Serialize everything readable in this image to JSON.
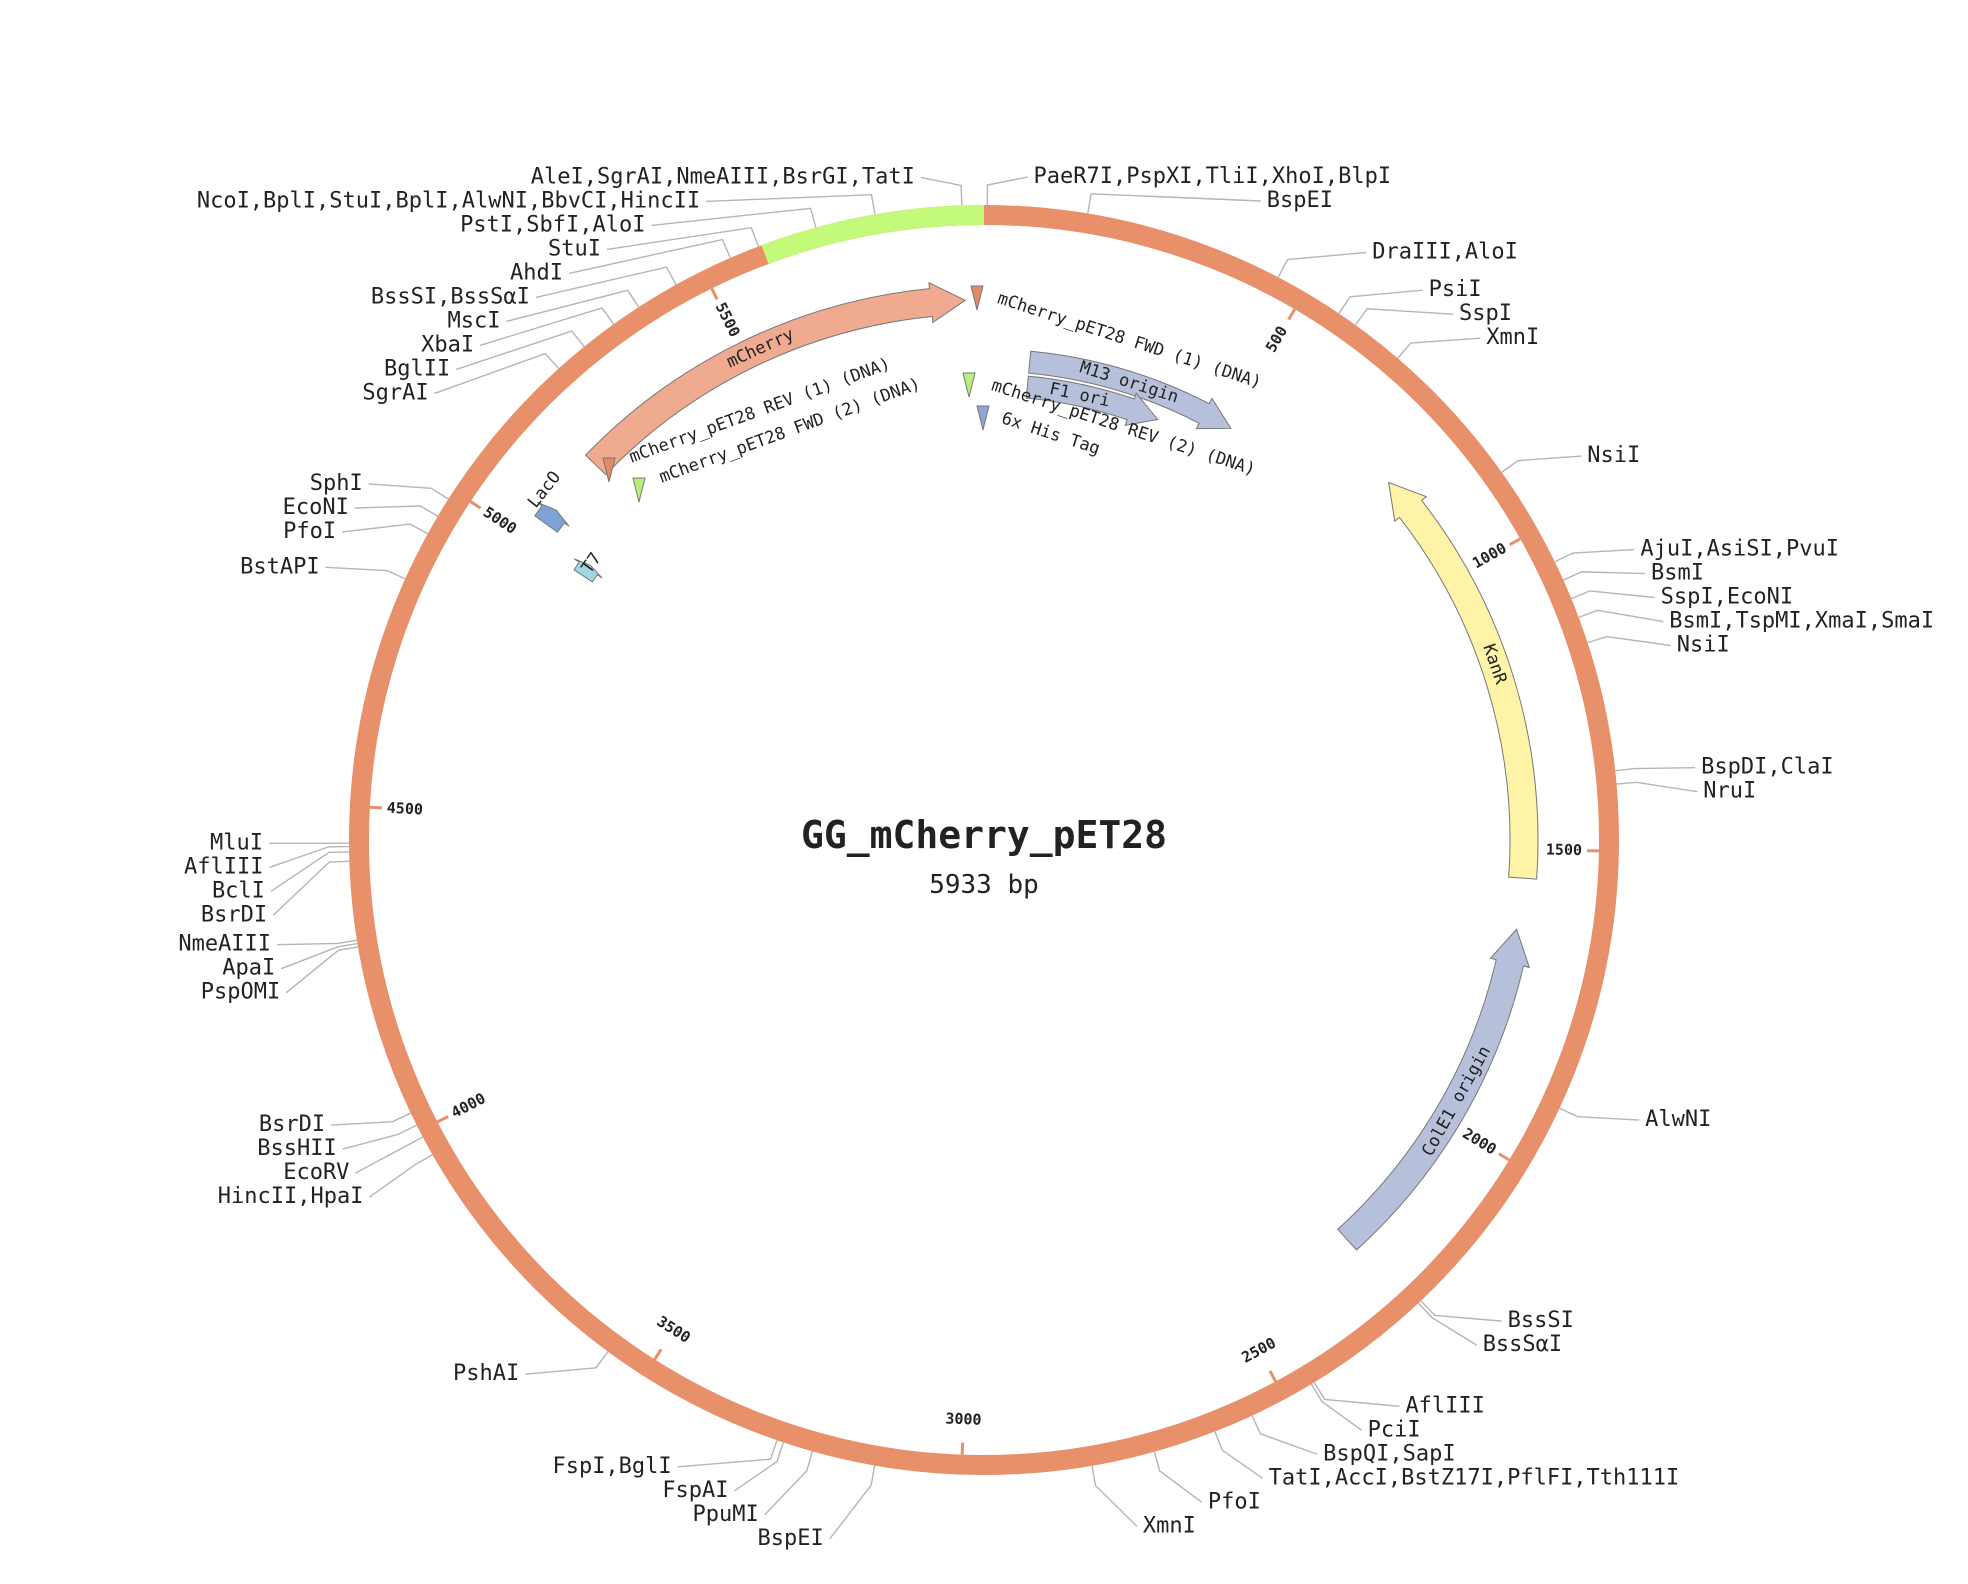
{
  "plasmid": {
    "name": "GG_mCherry_pET28",
    "length_label": "5933 bp",
    "length": 5933
  },
  "colors": {
    "backbone": "#e8906a",
    "insert": "#c3fa7a",
    "tick": "#e8906a",
    "mcherry": "#f0aa90",
    "origin": "#b7c0da",
    "kanr": "#fff3a8",
    "lacO": "#7ea3d6",
    "t7": "#9fd6e0",
    "primer_rev1": "#e08a66",
    "primer_green": "#b8ef7a",
    "his_tag": "#8ea6d6",
    "leader": "#b5b5b5"
  },
  "ring": {
    "insert_range": [
      5595,
      5933
    ]
  },
  "ticks": [
    {
      "pos": 500,
      "label": "500"
    },
    {
      "pos": 1000,
      "label": "1000"
    },
    {
      "pos": 1500,
      "label": "1500"
    },
    {
      "pos": 2000,
      "label": "2000"
    },
    {
      "pos": 2500,
      "label": "2500"
    },
    {
      "pos": 3000,
      "label": "3000"
    },
    {
      "pos": 3500,
      "label": "3500"
    },
    {
      "pos": 4000,
      "label": "4000"
    },
    {
      "pos": 4500,
      "label": "4500"
    },
    {
      "pos": 5000,
      "label": "5000"
    },
    {
      "pos": 5500,
      "label": "5500"
    }
  ],
  "features": [
    {
      "name": "mCherry",
      "start": 5175,
      "end": 5900,
      "direction": 1,
      "track": 0,
      "color_key": "mcherry",
      "label_pos": 5530
    },
    {
      "name": "KanR",
      "start": 800,
      "end": 1550,
      "direction": -1,
      "track": 0,
      "color_key": "kanr",
      "label_pos": 1170
    },
    {
      "name": "ColE1 origin",
      "start": 1640,
      "end": 2270,
      "direction": -1,
      "track": 0,
      "color_key": "origin",
      "label_pos": 1960
    },
    {
      "name": "M13 origin",
      "start": 90,
      "end": 510,
      "direction": 1,
      "track": 1,
      "color_key": "origin",
      "label_pos": 290
    },
    {
      "name": "F1 ori",
      "start": 90,
      "end": 370,
      "direction": 1,
      "track": 2,
      "color_key": "origin",
      "label_pos": 200
    },
    {
      "name": "LacO",
      "start": 5040,
      "end": 5070,
      "direction": 1,
      "track": 0,
      "color_key": "lacO",
      "label_pos": 5085
    },
    {
      "name": "T7",
      "start": 5000,
      "end": 5025,
      "direction": 1,
      "track": 1,
      "color_key": "t7",
      "label_pos": 5030
    }
  ],
  "primers": [
    {
      "name": "mCherry_pET28 FWD (1) (DNA)",
      "start": 5933,
      "end": 40,
      "track": 0,
      "color_key": "primer_rev1"
    },
    {
      "name": "mCherry_pET28 REV (2) (DNA)",
      "start": 5915,
      "end": 40,
      "track": 1,
      "color_key": "primer_green"
    },
    {
      "name": "6x His Tag",
      "start": 5915,
      "end": 40,
      "track": 2,
      "color_key": "his_tag"
    },
    {
      "name": "mCherry_pET28 REV (1) (DNA)",
      "start": 5155,
      "end": 5925,
      "track": 0,
      "color_key": "primer_rev1"
    },
    {
      "name": "mCherry_pET28 FWD (2) (DNA)",
      "start": 5175,
      "end": 5925,
      "track": 1,
      "color_key": "primer_green"
    }
  ],
  "sites": [
    {
      "label": "AleI,SgrAI,NmeAIII,BsrGI,TatI",
      "pos": 5900
    },
    {
      "label": "NcoI,BplI,StuI,BplI,AlwNI,BbvCI,HincII",
      "pos": 5770
    },
    {
      "label": "PstI,SbfI,AloI",
      "pos": 5680
    },
    {
      "label": "StuI",
      "pos": 5590
    },
    {
      "label": "AhdI",
      "pos": 5545
    },
    {
      "label": "BssSI,BssSαI",
      "pos": 5455
    },
    {
      "label": "MscI",
      "pos": 5390
    },
    {
      "label": "XbaI",
      "pos": 5345
    },
    {
      "label": "BglII",
      "pos": 5290
    },
    {
      "label": "SgrAI",
      "pos": 5240
    },
    {
      "label": "SphI",
      "pos": 4985
    },
    {
      "label": "EcoNI",
      "pos": 4955
    },
    {
      "label": "PfoI",
      "pos": 4925
    },
    {
      "label": "BstAPI",
      "pos": 4850
    },
    {
      "label": "MluI",
      "pos": 4445
    },
    {
      "label": "AflIII",
      "pos": 4440
    },
    {
      "label": "BclI",
      "pos": 4432
    },
    {
      "label": "BsrDI",
      "pos": 4418
    },
    {
      "label": "NmeAIII",
      "pos": 4300
    },
    {
      "label": "ApaI",
      "pos": 4295
    },
    {
      "label": "PspOMI",
      "pos": 4290
    },
    {
      "label": "BsrDI",
      "pos": 4030
    },
    {
      "label": "BssHII",
      "pos": 4010
    },
    {
      "label": "EcoRV",
      "pos": 3990
    },
    {
      "label": "HincII,HpaI",
      "pos": 3960
    },
    {
      "label": "PshAI",
      "pos": 3565
    },
    {
      "label": "FspI,BglI",
      "pos": 3280
    },
    {
      "label": "FspAI",
      "pos": 3270
    },
    {
      "label": "PpuMI",
      "pos": 3225
    },
    {
      "label": "BspEI",
      "pos": 3130
    },
    {
      "label": "XmnI",
      "pos": 2805
    },
    {
      "label": "PfoI",
      "pos": 2710
    },
    {
      "label": "TatI,AccI,BstZ17I,PflFI,Tth111I",
      "pos": 2615
    },
    {
      "label": "BspQI,SapI",
      "pos": 2555
    },
    {
      "label": "PciI",
      "pos": 2455
    },
    {
      "label": "AflIII",
      "pos": 2450
    },
    {
      "label": "BssSαI",
      "pos": 2255
    },
    {
      "label": "BssSI",
      "pos": 2250
    },
    {
      "label": "AlwNI",
      "pos": 1895
    },
    {
      "label": "NruI",
      "pos": 1400
    },
    {
      "label": "BspDI,ClaI",
      "pos": 1380
    },
    {
      "label": "NsiI",
      "pos": 1185
    },
    {
      "label": "BsmI,TspMI,XmaI,SmaI",
      "pos": 1145
    },
    {
      "label": "SspI,EcoNI",
      "pos": 1115
    },
    {
      "label": "BsmI",
      "pos": 1085
    },
    {
      "label": "AjuI,AsiSI,PvuI",
      "pos": 1055
    },
    {
      "label": "NsiI",
      "pos": 900
    },
    {
      "label": "XmnI",
      "pos": 670
    },
    {
      "label": "SspI",
      "pos": 590
    },
    {
      "label": "PsiI",
      "pos": 560
    },
    {
      "label": "DraIII,AloI",
      "pos": 455
    },
    {
      "label": "BspEI",
      "pos": 155
    },
    {
      "label": "PaeR7I,PspXI,TliI,XhoI,BlpI",
      "pos": 5
    }
  ]
}
